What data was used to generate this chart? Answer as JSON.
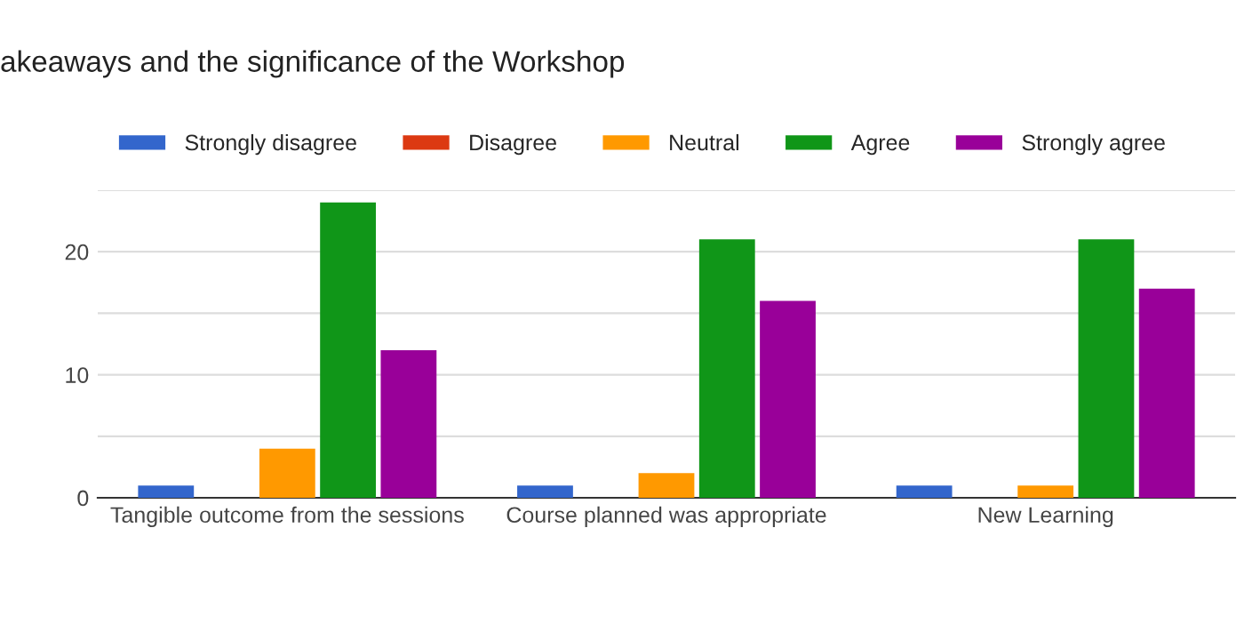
{
  "chart_data": {
    "type": "bar",
    "title": "akeaways and the significance of the Workshop",
    "categories": [
      "Tangible outcome from the sessions",
      "Course planned was appropriate",
      "New Learning"
    ],
    "series": [
      {
        "name": "Strongly disagree",
        "color": "#3366cc",
        "values": [
          1,
          1,
          1
        ]
      },
      {
        "name": "Disagree",
        "color": "#dc3912",
        "values": [
          0,
          0,
          0
        ]
      },
      {
        "name": "Neutral",
        "color": "#ff9900",
        "values": [
          4,
          2,
          1
        ]
      },
      {
        "name": "Agree",
        "color": "#109618",
        "values": [
          24,
          21,
          21
        ]
      },
      {
        "name": "Strongly agree",
        "color": "#990099",
        "values": [
          12,
          16,
          17
        ]
      }
    ],
    "ylim": [
      0,
      25
    ],
    "yticks": [
      0,
      {
        "value": 5,
        "label": null
      },
      10,
      {
        "value": 15,
        "label": null
      },
      20,
      {
        "value": 25,
        "label": null
      }
    ],
    "grid": "y",
    "legend": "top"
  }
}
